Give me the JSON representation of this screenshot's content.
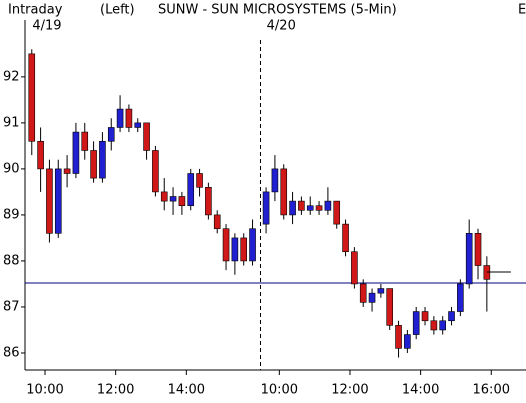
{
  "chart_data": {
    "type": "candlestick",
    "title": "SUNW - SUN MICROSYSTEMS  (5-Min)",
    "mode": "Intraday",
    "axis_side": "(Left)",
    "corner_text": "E",
    "dates": [
      {
        "label": "4/19",
        "value": 0
      },
      {
        "label": "4/20",
        "value": 398
      }
    ],
    "x": [
      0,
      15,
      30,
      45,
      60,
      75,
      90,
      105,
      120,
      135,
      150,
      165,
      180,
      195,
      210,
      225,
      240,
      255,
      270,
      285,
      300,
      315,
      330,
      345,
      360,
      375,
      398,
      413,
      428,
      443,
      458,
      473,
      488,
      503,
      518,
      533,
      548,
      563,
      578,
      593,
      608,
      623,
      638,
      653,
      668,
      683,
      698,
      713,
      728,
      743,
      758,
      773
    ],
    "open": [
      92.5,
      90.6,
      90.0,
      88.6,
      90.0,
      89.9,
      90.8,
      90.4,
      89.8,
      90.6,
      90.9,
      91.3,
      90.9,
      91.0,
      90.4,
      89.5,
      89.3,
      89.4,
      89.2,
      89.9,
      89.6,
      89.0,
      88.7,
      88.0,
      88.5,
      88.0,
      88.8,
      89.5,
      90.0,
      89.0,
      89.3,
      89.1,
      89.2,
      89.1,
      89.3,
      88.8,
      88.2,
      87.5,
      87.1,
      87.3,
      87.4,
      86.6,
      86.1,
      86.4,
      86.9,
      86.7,
      86.5,
      86.7,
      86.9,
      87.5,
      88.6,
      87.9
    ],
    "high": [
      92.6,
      90.9,
      90.2,
      90.2,
      90.3,
      91.0,
      91.0,
      90.6,
      90.8,
      91.1,
      91.6,
      91.4,
      91.1,
      91.0,
      90.5,
      89.8,
      89.6,
      89.5,
      90.0,
      90.0,
      89.7,
      89.1,
      88.8,
      88.6,
      88.6,
      88.9,
      89.6,
      90.3,
      90.1,
      89.5,
      89.4,
      89.4,
      89.3,
      89.6,
      89.3,
      88.9,
      88.3,
      87.6,
      87.4,
      87.5,
      87.4,
      86.7,
      86.5,
      87.0,
      87.0,
      86.8,
      86.8,
      87.0,
      87.6,
      88.9,
      88.7,
      88.1
    ],
    "low": [
      90.3,
      89.5,
      88.4,
      88.5,
      89.6,
      89.8,
      90.2,
      89.7,
      89.7,
      90.4,
      90.8,
      90.8,
      90.8,
      90.2,
      89.4,
      89.1,
      89.0,
      89.0,
      89.1,
      89.4,
      88.9,
      88.6,
      87.8,
      87.7,
      87.9,
      87.9,
      88.6,
      89.3,
      88.9,
      88.8,
      89.0,
      89.0,
      89.0,
      89.0,
      88.7,
      88.1,
      87.4,
      87.0,
      86.9,
      87.2,
      86.5,
      85.9,
      86.0,
      86.3,
      86.6,
      86.4,
      86.4,
      86.6,
      86.8,
      87.4,
      87.6,
      86.9
    ],
    "close": [
      90.6,
      90.0,
      88.6,
      90.0,
      89.9,
      90.8,
      90.4,
      89.8,
      90.6,
      90.9,
      91.3,
      90.9,
      91.0,
      90.4,
      89.5,
      89.3,
      89.4,
      89.2,
      89.9,
      89.6,
      89.0,
      88.7,
      88.0,
      88.5,
      88.0,
      88.7,
      89.5,
      90.0,
      89.0,
      89.3,
      89.1,
      89.2,
      89.1,
      89.3,
      88.8,
      88.2,
      87.5,
      87.1,
      87.3,
      87.4,
      86.6,
      86.1,
      86.4,
      86.9,
      86.7,
      86.5,
      86.7,
      86.9,
      87.5,
      88.6,
      87.9,
      87.6
    ],
    "up_color": "#2020d0",
    "down_color": "#d01818",
    "ref_line": 87.52,
    "ref_color": "#000080",
    "last_price": 87.76,
    "day_break": 396,
    "xlim": [
      -4,
      847
    ],
    "ylim": [
      85.63,
      93.67
    ],
    "xticks": [
      {
        "value": 30,
        "label": "10:00"
      },
      {
        "value": 150,
        "label": "12:00"
      },
      {
        "value": 270,
        "label": "14:00"
      },
      {
        "value": 428,
        "label": "10:00"
      },
      {
        "value": 548,
        "label": "12:00"
      },
      {
        "value": 668,
        "label": "14:00"
      },
      {
        "value": 788,
        "label": "16:00"
      }
    ],
    "yticks": [
      86,
      87,
      88,
      89,
      90,
      91,
      92
    ]
  }
}
